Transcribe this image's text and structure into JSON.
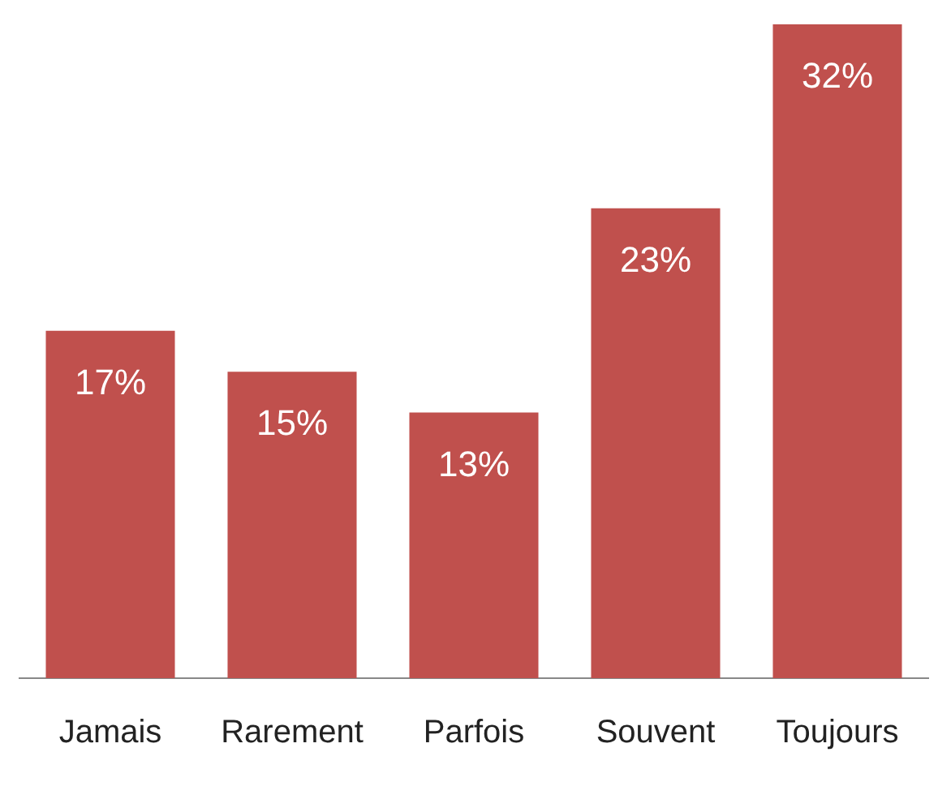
{
  "chart_data": {
    "type": "bar",
    "categories": [
      "Jamais",
      "Rarement",
      "Parfois",
      "Souvent",
      "Toujours"
    ],
    "values": [
      17,
      15,
      13,
      23,
      32
    ],
    "value_labels": [
      "17%",
      "15%",
      "13%",
      "23%",
      "32%"
    ],
    "color": "#c0504d"
  }
}
